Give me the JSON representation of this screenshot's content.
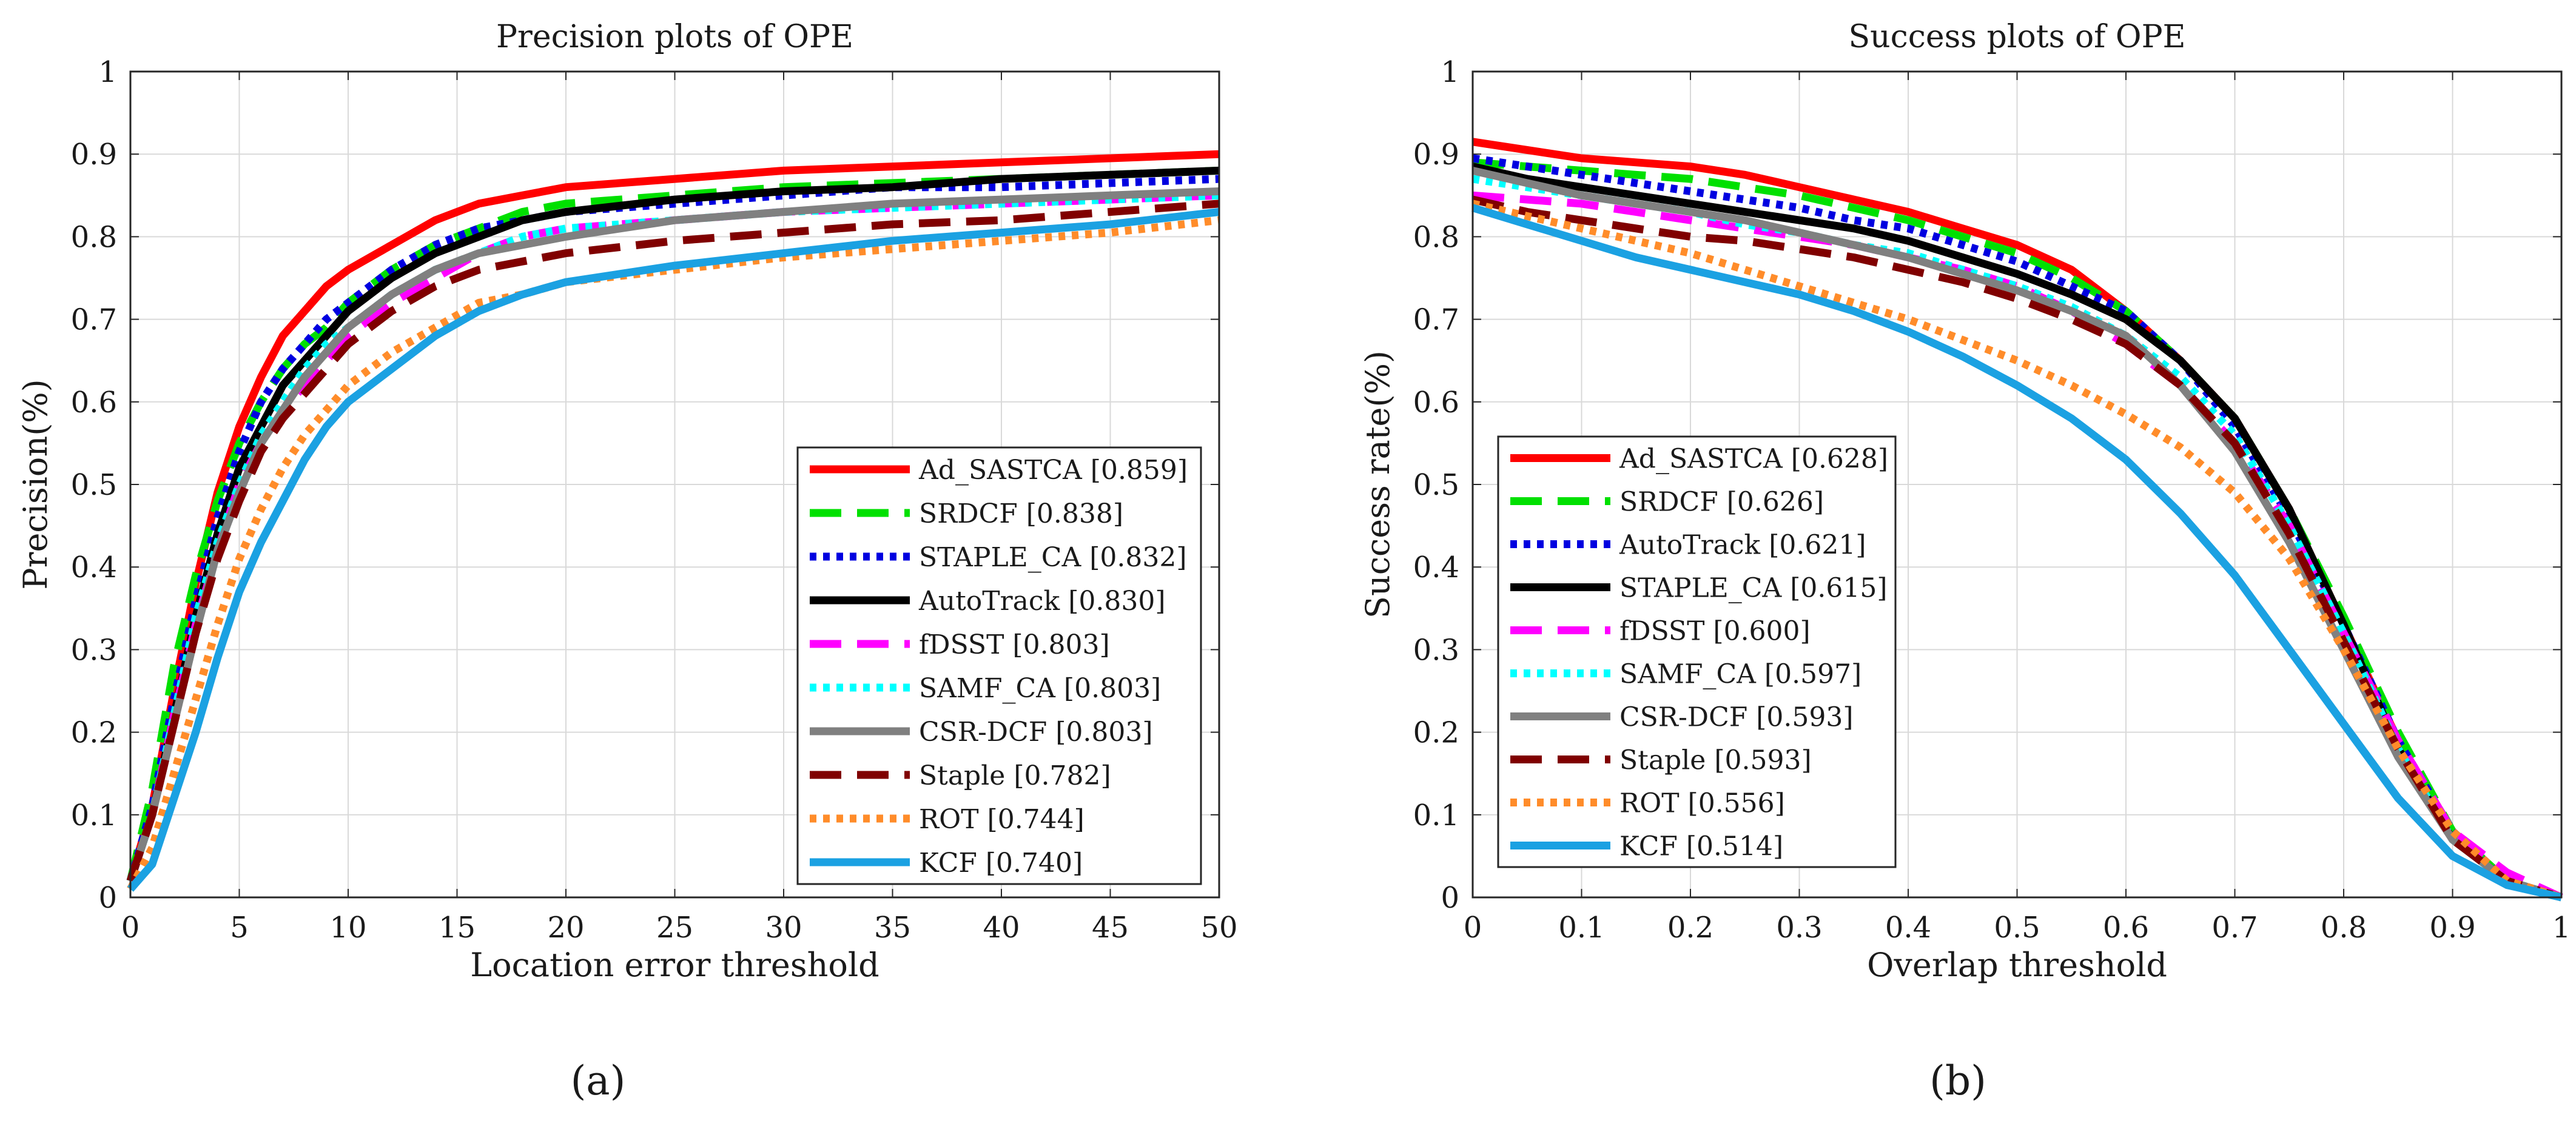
{
  "captions": [
    "(a)",
    "(b)"
  ],
  "chart_data": [
    {
      "type": "line",
      "title": "Precision plots of OPE",
      "xlabel": "Location error threshold",
      "ylabel": "Precision(%)",
      "xlim": [
        0,
        50
      ],
      "ylim": [
        0,
        1
      ],
      "xticks": [
        0,
        5,
        10,
        15,
        20,
        25,
        30,
        35,
        40,
        45,
        50
      ],
      "yticks": [
        0,
        0.1,
        0.2,
        0.3,
        0.4,
        0.5,
        0.6,
        0.7,
        0.8,
        0.9,
        1
      ],
      "grid": true,
      "legend_position": "bottom-right",
      "x": [
        0,
        1,
        2,
        3,
        4,
        5,
        6,
        7,
        8,
        9,
        10,
        12,
        14,
        16,
        18,
        20,
        25,
        30,
        35,
        40,
        45,
        50
      ],
      "series": [
        {
          "name": "Ad_SASTCA [0.859]",
          "color": "#ff0000",
          "dash": "solid",
          "values": [
            0.02,
            0.11,
            0.25,
            0.38,
            0.49,
            0.57,
            0.63,
            0.68,
            0.71,
            0.74,
            0.76,
            0.79,
            0.82,
            0.84,
            0.85,
            0.86,
            0.87,
            0.88,
            0.885,
            0.89,
            0.895,
            0.9
          ]
        },
        {
          "name": "SRDCF [0.838]",
          "color": "#00e000",
          "dash": "long",
          "values": [
            0.02,
            0.13,
            0.28,
            0.39,
            0.48,
            0.55,
            0.6,
            0.64,
            0.67,
            0.69,
            0.72,
            0.76,
            0.79,
            0.81,
            0.83,
            0.84,
            0.85,
            0.86,
            0.865,
            0.87,
            0.875,
            0.88
          ]
        },
        {
          "name": "STAPLE_CA [0.832]",
          "color": "#0000e0",
          "dash": "dot",
          "values": [
            0.02,
            0.11,
            0.24,
            0.36,
            0.46,
            0.54,
            0.6,
            0.64,
            0.67,
            0.7,
            0.72,
            0.76,
            0.79,
            0.81,
            0.82,
            0.83,
            0.84,
            0.85,
            0.86,
            0.86,
            0.865,
            0.87
          ]
        },
        {
          "name": "AutoTrack [0.830]",
          "color": "#000000",
          "dash": "solid",
          "values": [
            0.02,
            0.1,
            0.22,
            0.34,
            0.44,
            0.52,
            0.57,
            0.62,
            0.65,
            0.68,
            0.71,
            0.75,
            0.78,
            0.8,
            0.82,
            0.83,
            0.845,
            0.855,
            0.86,
            0.87,
            0.875,
            0.88
          ]
        },
        {
          "name": "fDSST [0.803]",
          "color": "#ff00ff",
          "dash": "long",
          "values": [
            0.02,
            0.1,
            0.22,
            0.33,
            0.42,
            0.5,
            0.55,
            0.59,
            0.62,
            0.65,
            0.68,
            0.72,
            0.75,
            0.78,
            0.8,
            0.81,
            0.82,
            0.83,
            0.835,
            0.84,
            0.845,
            0.85
          ]
        },
        {
          "name": "SAMF_CA [0.803]",
          "color": "#00ffff",
          "dash": "dot",
          "values": [
            0.02,
            0.1,
            0.22,
            0.34,
            0.43,
            0.5,
            0.56,
            0.6,
            0.64,
            0.67,
            0.69,
            0.73,
            0.76,
            0.78,
            0.8,
            0.81,
            0.82,
            0.83,
            0.835,
            0.84,
            0.845,
            0.85
          ]
        },
        {
          "name": "CSR-DCF [0.803]",
          "color": "#808080",
          "dash": "solid",
          "values": [
            0.02,
            0.1,
            0.21,
            0.32,
            0.42,
            0.49,
            0.55,
            0.59,
            0.63,
            0.66,
            0.69,
            0.73,
            0.76,
            0.78,
            0.79,
            0.8,
            0.82,
            0.83,
            0.84,
            0.845,
            0.85,
            0.855
          ]
        },
        {
          "name": "Staple [0.782]",
          "color": "#800000",
          "dash": "long",
          "values": [
            0.02,
            0.1,
            0.21,
            0.32,
            0.41,
            0.48,
            0.54,
            0.58,
            0.61,
            0.64,
            0.67,
            0.71,
            0.74,
            0.76,
            0.77,
            0.78,
            0.795,
            0.805,
            0.815,
            0.82,
            0.83,
            0.84
          ]
        },
        {
          "name": "ROT [0.744]",
          "color": "#ff8c2a",
          "dash": "dot",
          "values": [
            0.01,
            0.06,
            0.15,
            0.24,
            0.33,
            0.41,
            0.47,
            0.52,
            0.56,
            0.59,
            0.62,
            0.66,
            0.69,
            0.72,
            0.73,
            0.745,
            0.76,
            0.775,
            0.785,
            0.795,
            0.805,
            0.82
          ]
        },
        {
          "name": "KCF [0.740]",
          "color": "#1ba1e2",
          "dash": "solid",
          "values": [
            0.01,
            0.04,
            0.12,
            0.2,
            0.29,
            0.37,
            0.43,
            0.48,
            0.53,
            0.57,
            0.6,
            0.64,
            0.68,
            0.71,
            0.73,
            0.745,
            0.765,
            0.78,
            0.795,
            0.805,
            0.815,
            0.83
          ]
        }
      ]
    },
    {
      "type": "line",
      "title": "Success plots of OPE",
      "xlabel": "Overlap threshold",
      "ylabel": "Success rate(%)",
      "xlim": [
        0,
        1
      ],
      "ylim": [
        0,
        1
      ],
      "xticks": [
        0,
        0.1,
        0.2,
        0.3,
        0.4,
        0.5,
        0.6,
        0.7,
        0.8,
        0.9,
        1
      ],
      "yticks": [
        0,
        0.1,
        0.2,
        0.3,
        0.4,
        0.5,
        0.6,
        0.7,
        0.8,
        0.9,
        1
      ],
      "grid": true,
      "legend_position": "bottom-left",
      "x": [
        0,
        0.05,
        0.1,
        0.15,
        0.2,
        0.25,
        0.3,
        0.35,
        0.4,
        0.45,
        0.5,
        0.55,
        0.6,
        0.65,
        0.7,
        0.75,
        0.8,
        0.85,
        0.9,
        0.95,
        1
      ],
      "series": [
        {
          "name": "Ad_SASTCA [0.628]",
          "color": "#ff0000",
          "dash": "solid",
          "values": [
            0.915,
            0.905,
            0.895,
            0.89,
            0.885,
            0.875,
            0.86,
            0.845,
            0.83,
            0.81,
            0.79,
            0.76,
            0.71,
            0.65,
            0.58,
            0.47,
            0.33,
            0.19,
            0.08,
            0.02,
            0
          ]
        },
        {
          "name": "SRDCF [0.626]",
          "color": "#00e000",
          "dash": "long",
          "values": [
            0.89,
            0.885,
            0.88,
            0.875,
            0.87,
            0.86,
            0.85,
            0.835,
            0.82,
            0.8,
            0.78,
            0.75,
            0.71,
            0.65,
            0.58,
            0.47,
            0.34,
            0.2,
            0.08,
            0.02,
            0
          ]
        },
        {
          "name": "AutoTrack [0.621]",
          "color": "#0000e0",
          "dash": "dot",
          "values": [
            0.895,
            0.885,
            0.875,
            0.865,
            0.855,
            0.845,
            0.835,
            0.82,
            0.81,
            0.79,
            0.77,
            0.74,
            0.71,
            0.65,
            0.57,
            0.46,
            0.33,
            0.19,
            0.08,
            0.02,
            0
          ]
        },
        {
          "name": "STAPLE_CA [0.615]",
          "color": "#000000",
          "dash": "solid",
          "values": [
            0.885,
            0.87,
            0.86,
            0.85,
            0.84,
            0.83,
            0.82,
            0.81,
            0.795,
            0.775,
            0.755,
            0.73,
            0.7,
            0.65,
            0.58,
            0.47,
            0.33,
            0.18,
            0.07,
            0.02,
            0
          ]
        },
        {
          "name": "fDSST [0.600]",
          "color": "#ff00ff",
          "dash": "long",
          "values": [
            0.85,
            0.845,
            0.84,
            0.83,
            0.82,
            0.81,
            0.8,
            0.79,
            0.775,
            0.76,
            0.74,
            0.71,
            0.67,
            0.62,
            0.55,
            0.45,
            0.32,
            0.19,
            0.08,
            0.03,
            0
          ]
        },
        {
          "name": "SAMF_CA [0.597]",
          "color": "#00ffff",
          "dash": "dot",
          "values": [
            0.87,
            0.86,
            0.85,
            0.84,
            0.83,
            0.815,
            0.805,
            0.79,
            0.78,
            0.76,
            0.74,
            0.715,
            0.68,
            0.63,
            0.56,
            0.45,
            0.32,
            0.18,
            0.07,
            0.02,
            0
          ]
        },
        {
          "name": "CSR-DCF [0.593]",
          "color": "#808080",
          "dash": "solid",
          "values": [
            0.88,
            0.865,
            0.85,
            0.84,
            0.83,
            0.82,
            0.805,
            0.79,
            0.775,
            0.755,
            0.735,
            0.71,
            0.68,
            0.62,
            0.54,
            0.43,
            0.3,
            0.17,
            0.07,
            0.02,
            0
          ]
        },
        {
          "name": "Staple [0.593]",
          "color": "#800000",
          "dash": "long",
          "values": [
            0.845,
            0.83,
            0.82,
            0.81,
            0.8,
            0.795,
            0.785,
            0.775,
            0.76,
            0.745,
            0.725,
            0.7,
            0.67,
            0.62,
            0.55,
            0.44,
            0.31,
            0.18,
            0.07,
            0.02,
            0
          ]
        },
        {
          "name": "ROT [0.556]",
          "color": "#ff8c2a",
          "dash": "dot",
          "values": [
            0.84,
            0.825,
            0.81,
            0.795,
            0.78,
            0.76,
            0.74,
            0.72,
            0.7,
            0.675,
            0.65,
            0.62,
            0.585,
            0.545,
            0.49,
            0.41,
            0.3,
            0.18,
            0.08,
            0.02,
            0
          ]
        },
        {
          "name": "KCF [0.514]",
          "color": "#1ba1e2",
          "dash": "solid",
          "values": [
            0.835,
            0.815,
            0.795,
            0.775,
            0.76,
            0.745,
            0.73,
            0.71,
            0.685,
            0.655,
            0.62,
            0.58,
            0.53,
            0.465,
            0.39,
            0.3,
            0.21,
            0.12,
            0.05,
            0.015,
            0
          ]
        }
      ]
    }
  ]
}
